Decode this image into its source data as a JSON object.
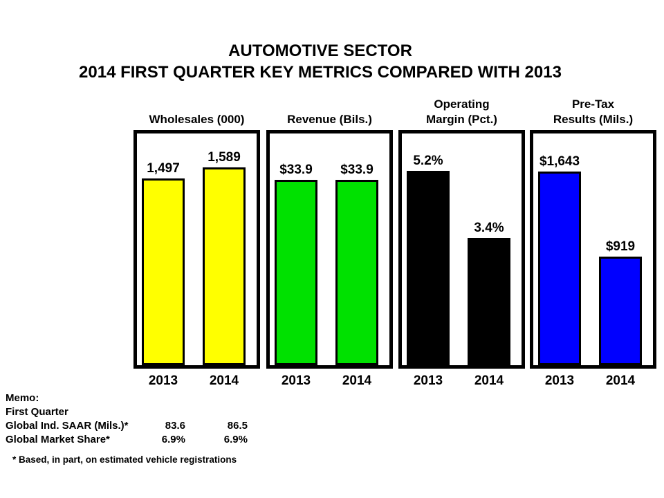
{
  "title": {
    "line1": "AUTOMOTIVE SECTOR",
    "line2": "2014 FIRST QUARTER KEY METRICS COMPARED WITH 2013"
  },
  "colors": {
    "wholesales_bar": "#FFFF00",
    "revenue_bar": "#00E100",
    "operating_margin_bar": "#000000",
    "pretax_bar": "#0000FF",
    "text": "#000000",
    "background": "#FFFFFF"
  },
  "chart_data": [
    {
      "type": "bar",
      "title": "Wholesales (000)",
      "title_lines": [
        "Wholesales (000)"
      ],
      "categories": [
        "2013",
        "2014"
      ],
      "values": [
        1497,
        1589
      ],
      "labels": [
        "1,497",
        "1,589"
      ],
      "bar_color": "#FFFF00",
      "ylim": [
        0,
        1860
      ],
      "grid": false,
      "legend": "none"
    },
    {
      "type": "bar",
      "title": "Revenue (Bils.)",
      "title_lines": [
        "Revenue (Bils.)"
      ],
      "categories": [
        "2013",
        "2014"
      ],
      "values": [
        33.9,
        33.9
      ],
      "labels": [
        "$33.9",
        "$33.9"
      ],
      "bar_color": "#00E100",
      "ylim": [
        0,
        42.4
      ],
      "grid": false,
      "legend": "none"
    },
    {
      "type": "bar",
      "title": "Operating Margin (Pct.)",
      "title_lines": [
        "Operating",
        "Margin (Pct.)"
      ],
      "categories": [
        "2013",
        "2014"
      ],
      "values": [
        5.2,
        3.4
      ],
      "labels": [
        "5.2%",
        "3.4%"
      ],
      "bar_color": "#000000",
      "ylim": [
        0,
        6.2
      ],
      "grid": false,
      "legend": "none"
    },
    {
      "type": "bar",
      "title": "Pre-Tax Results (Mils.)",
      "title_lines": [
        "Pre-Tax",
        "Results (Mils.)"
      ],
      "categories": [
        "2013",
        "2014"
      ],
      "values": [
        1643,
        919
      ],
      "labels": [
        "$1,643",
        "$919"
      ],
      "bar_color": "#0000FF",
      "ylim": [
        0,
        1965
      ],
      "grid": false,
      "legend": "none"
    }
  ],
  "memo": {
    "heading": "Memo:",
    "period": "First Quarter",
    "rows": [
      {
        "label": "Global Ind. SAAR (Mils.)*",
        "v2013": "83.6",
        "v2014": "86.5"
      },
      {
        "label": "Global Market Share*",
        "v2013": "6.9%",
        "v2014": "6.9%"
      }
    ]
  },
  "footnote": "* Based, in part, on estimated vehicle registrations"
}
